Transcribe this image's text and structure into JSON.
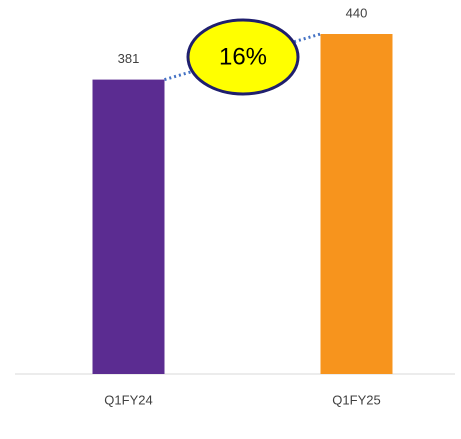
{
  "chart_data": {
    "type": "bar",
    "categories": [
      "Q1FY24",
      "Q1FY25"
    ],
    "values": [
      381,
      440
    ],
    "colors": [
      "#5b2c91",
      "#f7941d"
    ],
    "annotation": "16%"
  }
}
